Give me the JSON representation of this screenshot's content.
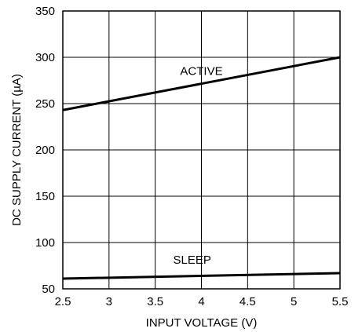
{
  "chart_data": {
    "type": "line",
    "xlabel": "INPUT VOLTAGE (V)",
    "ylabel": "DC SUPPLY CURRENT (µA)",
    "xlim": [
      2.5,
      5.5
    ],
    "ylim": [
      50,
      350
    ],
    "x_ticks": [
      "2.5",
      "3",
      "3.5",
      "4",
      "4.5",
      "5",
      "5.5"
    ],
    "y_ticks": [
      "50",
      "100",
      "150",
      "200",
      "250",
      "300",
      "350"
    ],
    "grid": true,
    "series": [
      {
        "name": "ACTIVE",
        "x": [
          2.5,
          5.5
        ],
        "y": [
          243,
          300
        ]
      },
      {
        "name": "SLEEP",
        "x": [
          2.5,
          5.5
        ],
        "y": [
          61,
          67
        ]
      }
    ],
    "annotations": [
      {
        "text": "ACTIVE",
        "x": 4.0,
        "y": 281
      },
      {
        "text": "SLEEP",
        "x": 3.9,
        "y": 77
      }
    ]
  }
}
